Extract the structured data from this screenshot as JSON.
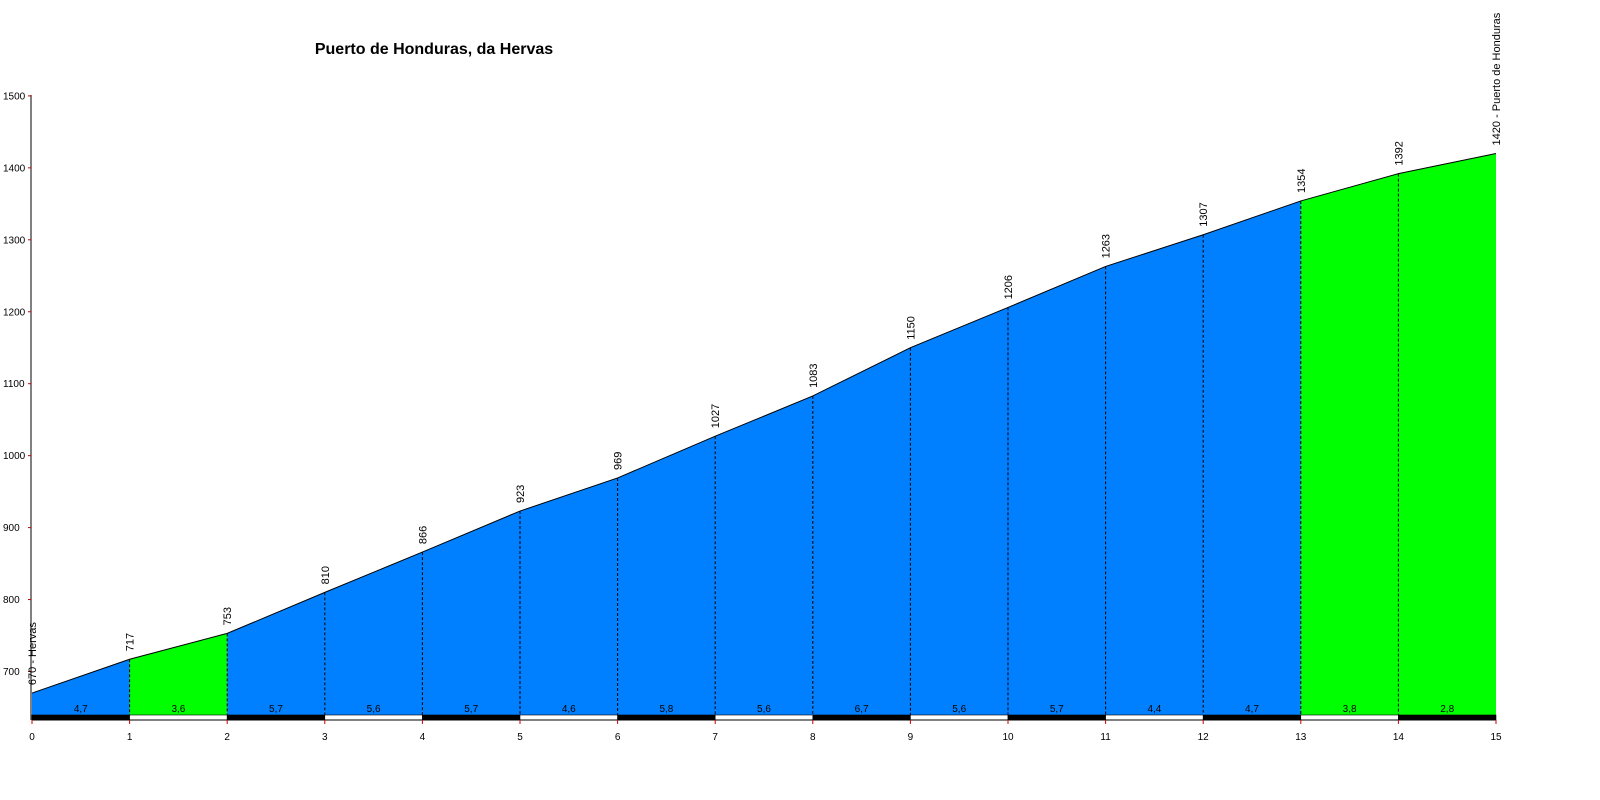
{
  "chart_data": {
    "type": "area",
    "title": "Puerto de Honduras, da Hervas",
    "xlabel": "",
    "ylabel": "",
    "xlim": [
      0,
      15
    ],
    "ylim": [
      630,
      1500
    ],
    "x_ticks": [
      "0",
      "1",
      "2",
      "3",
      "4",
      "5",
      "6",
      "7",
      "8",
      "9",
      "10",
      "11",
      "12",
      "13",
      "14",
      "15"
    ],
    "y_ticks": [
      "700",
      "800",
      "900",
      "1000",
      "1100",
      "1200",
      "1300",
      "1400",
      "1500"
    ],
    "y_tick_values": [
      700,
      800,
      900,
      1000,
      1100,
      1200,
      1300,
      1400,
      1500
    ],
    "x": [
      0,
      1,
      2,
      3,
      4,
      5,
      6,
      7,
      8,
      9,
      10,
      11,
      12,
      13,
      14,
      15
    ],
    "elevation": [
      670,
      717,
      753,
      810,
      866,
      923,
      969,
      1027,
      1083,
      1150,
      1206,
      1263,
      1307,
      1354,
      1392,
      1420
    ],
    "point_labels": [
      "670 - Hervas",
      "717",
      "753",
      "810",
      "866",
      "923",
      "969",
      "1027",
      "1083",
      "1150",
      "1206",
      "1263",
      "1307",
      "1354",
      "1392",
      "1420 - Puerto de Honduras"
    ],
    "segment_gradients": [
      "4,7",
      "3,6",
      "5,7",
      "5,6",
      "5,7",
      "4,6",
      "5,8",
      "5,6",
      "6,7",
      "5,6",
      "5,7",
      "4,4",
      "4,7",
      "3,8",
      "2,8"
    ],
    "segment_colors": [
      "#0080ff",
      "#00ff00",
      "#0080ff",
      "#0080ff",
      "#0080ff",
      "#0080ff",
      "#0080ff",
      "#0080ff",
      "#0080ff",
      "#0080ff",
      "#0080ff",
      "#0080ff",
      "#0080ff",
      "#00ff00",
      "#00ff00"
    ],
    "grid": false,
    "legend": "none"
  }
}
